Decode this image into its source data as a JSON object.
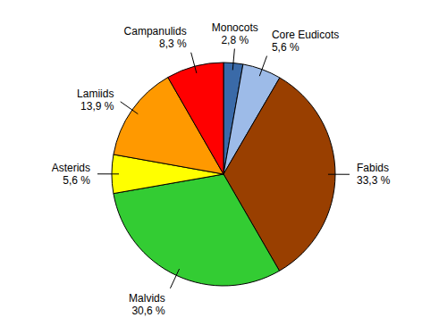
{
  "chart_data": {
    "type": "pie",
    "categories": [
      "Monocots",
      "Core Eudicots",
      "Fabids",
      "Malvids",
      "Asterids",
      "Lamiids",
      "Campanulids"
    ],
    "values": [
      2.8,
      5.6,
      33.3,
      30.6,
      5.6,
      13.9,
      8.3
    ],
    "value_labels": [
      "2,8 %",
      "5,6 %",
      "33,3 %",
      "30,6 %",
      "5,6 %",
      "13,9 %",
      "8,3 %"
    ],
    "colors": [
      "#3a6aa8",
      "#9dbbe8",
      "#993f00",
      "#33cc33",
      "#ffff00",
      "#ff9900",
      "#ff0000"
    ],
    "data_labels": true
  }
}
